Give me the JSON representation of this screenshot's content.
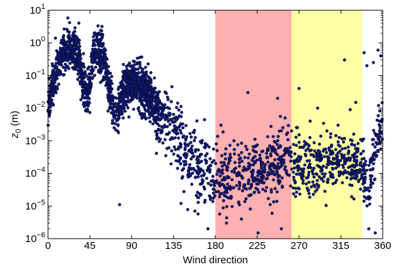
{
  "chart_data": {
    "type": "scatter",
    "title": "",
    "xlabel": "Wind direction",
    "ylabel_main": "z",
    "ylabel_sub": "0",
    "ylabel_unit": " (m)",
    "xlim": [
      0,
      360
    ],
    "ylim": [
      1e-06,
      10
    ],
    "yscale": "log",
    "xticks": [
      0,
      45,
      90,
      135,
      180,
      225,
      270,
      315,
      360
    ],
    "yticks": [
      {
        "value": 1e-06,
        "base": "10",
        "exp": "−6"
      },
      {
        "value": 1e-05,
        "base": "10",
        "exp": "−5"
      },
      {
        "value": 0.0001,
        "base": "10",
        "exp": "−4"
      },
      {
        "value": 0.001,
        "base": "10",
        "exp": "−3"
      },
      {
        "value": 0.01,
        "base": "10",
        "exp": "−2"
      },
      {
        "value": 0.1,
        "base": "10",
        "exp": "−1"
      },
      {
        "value": 1,
        "base": "10",
        "exp": "0"
      },
      {
        "value": 10,
        "base": "10",
        "exp": "1"
      }
    ],
    "shaded_regions": [
      {
        "x0": 180,
        "x1": 262,
        "color": "#ffb0b0"
      },
      {
        "x0": 262,
        "x1": 338,
        "color": "#ffffa8"
      }
    ],
    "marker_fill": "#101a78",
    "marker_edge": "#000000",
    "grid": false,
    "trend_profile": [
      [
        0,
        0.008
      ],
      [
        5,
        0.05
      ],
      [
        10,
        0.15
      ],
      [
        15,
        0.4
      ],
      [
        20,
        0.6
      ],
      [
        25,
        0.75
      ],
      [
        30,
        0.6
      ],
      [
        33,
        0.35
      ],
      [
        36,
        0.12
      ],
      [
        39,
        0.04
      ],
      [
        42,
        0.02
      ],
      [
        45,
        0.05
      ],
      [
        48,
        0.3
      ],
      [
        52,
        0.6
      ],
      [
        57,
        0.5
      ],
      [
        61,
        0.25
      ],
      [
        64,
        0.08
      ],
      [
        67,
        0.03
      ],
      [
        70,
        0.012
      ],
      [
        73,
        0.006
      ],
      [
        76,
        0.01
      ],
      [
        80,
        0.03
      ],
      [
        85,
        0.05
      ],
      [
        90,
        0.06
      ],
      [
        95,
        0.05
      ],
      [
        100,
        0.04
      ],
      [
        105,
        0.028
      ],
      [
        110,
        0.018
      ],
      [
        115,
        0.01
      ],
      [
        120,
        0.006
      ],
      [
        125,
        0.004
      ],
      [
        130,
        0.003
      ],
      [
        135,
        0.002
      ],
      [
        140,
        0.0012
      ],
      [
        145,
        0.0007
      ],
      [
        150,
        0.0004
      ],
      [
        155,
        0.00028
      ],
      [
        160,
        0.0002
      ],
      [
        165,
        0.00015
      ],
      [
        170,
        0.00012
      ],
      [
        175,
        0.0001
      ],
      [
        180,
        9e-05
      ],
      [
        190,
        8e-05
      ],
      [
        200,
        8e-05
      ],
      [
        210,
        9e-05
      ],
      [
        220,
        0.0001
      ],
      [
        230,
        0.00013
      ],
      [
        240,
        0.00016
      ],
      [
        250,
        0.0002
      ],
      [
        260,
        0.00026
      ],
      [
        265,
        0.00022
      ],
      [
        270,
        0.00016
      ],
      [
        280,
        0.00015
      ],
      [
        290,
        0.00018
      ],
      [
        300,
        0.00022
      ],
      [
        310,
        0.00025
      ],
      [
        320,
        0.00025
      ],
      [
        330,
        0.00022
      ],
      [
        335,
        0.00014
      ],
      [
        340,
        8e-05
      ],
      [
        343,
        4e-05
      ],
      [
        346,
        3e-05
      ],
      [
        348,
        0.0003
      ],
      [
        350,
        0.0004
      ],
      [
        353,
        0.0006
      ],
      [
        356,
        0.0015
      ],
      [
        358,
        0.003
      ],
      [
        360,
        0.006
      ]
    ],
    "scatter_spread_decades": [
      [
        0,
        0.3
      ],
      [
        60,
        0.35
      ],
      [
        90,
        0.3
      ],
      [
        130,
        0.5
      ],
      [
        170,
        0.55
      ],
      [
        260,
        0.45
      ],
      [
        360,
        0.4
      ]
    ],
    "point_count": 2600,
    "outliers": [
      [
        8,
        1.4
      ],
      [
        14,
        1.0
      ],
      [
        22,
        1.1
      ],
      [
        55,
        1.0
      ],
      [
        77,
        1.1e-05
      ],
      [
        143,
        1.2e-05
      ],
      [
        158,
        7e-06
      ],
      [
        172,
        2e-06
      ],
      [
        181,
        0.0008
      ],
      [
        186,
        0.003
      ],
      [
        192,
        3e-06
      ],
      [
        200,
        0.001
      ],
      [
        208,
        4e-06
      ],
      [
        215,
        0.03
      ],
      [
        226,
        1.5e-06
      ],
      [
        241,
        6e-06
      ],
      [
        247,
        0.02
      ],
      [
        251,
        2e-06
      ],
      [
        255,
        0.005
      ],
      [
        262,
        0.002
      ],
      [
        270,
        0.04
      ],
      [
        282,
        0.004
      ],
      [
        290,
        0.01
      ],
      [
        300,
        0.002
      ],
      [
        312,
        0.003
      ],
      [
        319,
        0.3
      ],
      [
        325,
        0.009
      ],
      [
        331,
        0.015
      ],
      [
        338,
        0.001
      ],
      [
        340,
        0.5
      ],
      [
        343,
        0.2
      ],
      [
        345,
        2e-06
      ],
      [
        350,
        0.25
      ],
      [
        352,
        1.5e-06
      ],
      [
        355,
        0.6
      ],
      [
        358,
        0.4
      ]
    ]
  }
}
